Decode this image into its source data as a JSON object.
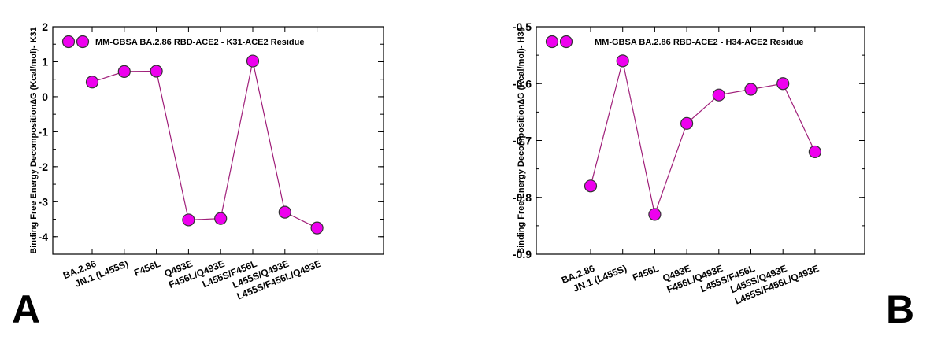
{
  "chart_data": [
    {
      "type": "line",
      "panel_label": "A",
      "ylabel": "Binding Free Energy Decomposition∆G (Kcal/mol)- K31",
      "ylim": [
        -4.5,
        2
      ],
      "yticks": [
        2,
        1,
        0,
        -1,
        -2,
        -3,
        -4
      ],
      "categories": [
        "BA.2.86",
        "JN.1 (L455S)",
        "F456L",
        "Q493E",
        "F456L/Q493E",
        "L455S/F456L",
        "L455S/Q493E",
        "L455S/F456L/Q493E"
      ],
      "series": [
        {
          "name": "MM-GBSA BA.2.86 RBD-ACE2 -  K31-ACE2 Residue",
          "values": [
            0.42,
            0.72,
            0.73,
            -3.52,
            -3.48,
            1.02,
            -3.3,
            -3.75
          ]
        }
      ],
      "legend_position": "top-left",
      "marker_color": "#ee00ee",
      "line_color": "#a0207a"
    },
    {
      "type": "line",
      "panel_label": "B",
      "ylabel": "Binding Free Energy Decomposition∆G (Kcal/mol)- H34",
      "ylim": [
        -0.9,
        -0.5
      ],
      "yticks": [
        -0.5,
        -0.6,
        -0.7,
        -0.8,
        -0.9
      ],
      "categories": [
        "BA.2.86",
        "JN.1 (L455S)",
        "F456L",
        "Q493E",
        "F456L/Q493E",
        "L455S/F456L",
        "L455S/Q493E",
        "L455S/F456L/Q493E"
      ],
      "series": [
        {
          "name": "MM-GBSA BA.2.86 RBD-ACE2 -  H34-ACE2 Residue",
          "values": [
            -0.78,
            -0.56,
            -0.83,
            -0.67,
            -0.62,
            -0.61,
            -0.6,
            -0.72
          ]
        }
      ],
      "legend_position": "top-left",
      "marker_color": "#ee00ee",
      "line_color": "#a0207a"
    }
  ]
}
